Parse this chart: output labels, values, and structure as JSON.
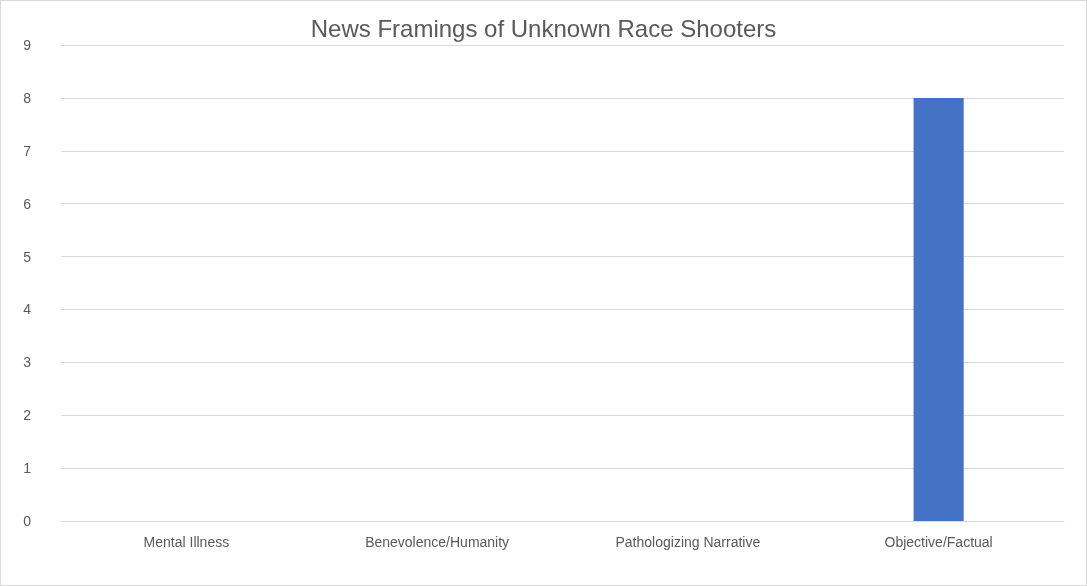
{
  "chart_data": {
    "type": "bar",
    "title": "News Framings of Unknown Race Shooters",
    "categories": [
      "Mental Illness",
      "Benevolence/Humanity",
      "Pathologizing Narrative",
      "Objective/Factual"
    ],
    "values": [
      0,
      0,
      0,
      8
    ],
    "color": "#4472c4",
    "ylim": [
      0,
      9
    ],
    "yticks": [
      0,
      1,
      2,
      3,
      4,
      5,
      6,
      7,
      8,
      9
    ],
    "grid": "y"
  }
}
